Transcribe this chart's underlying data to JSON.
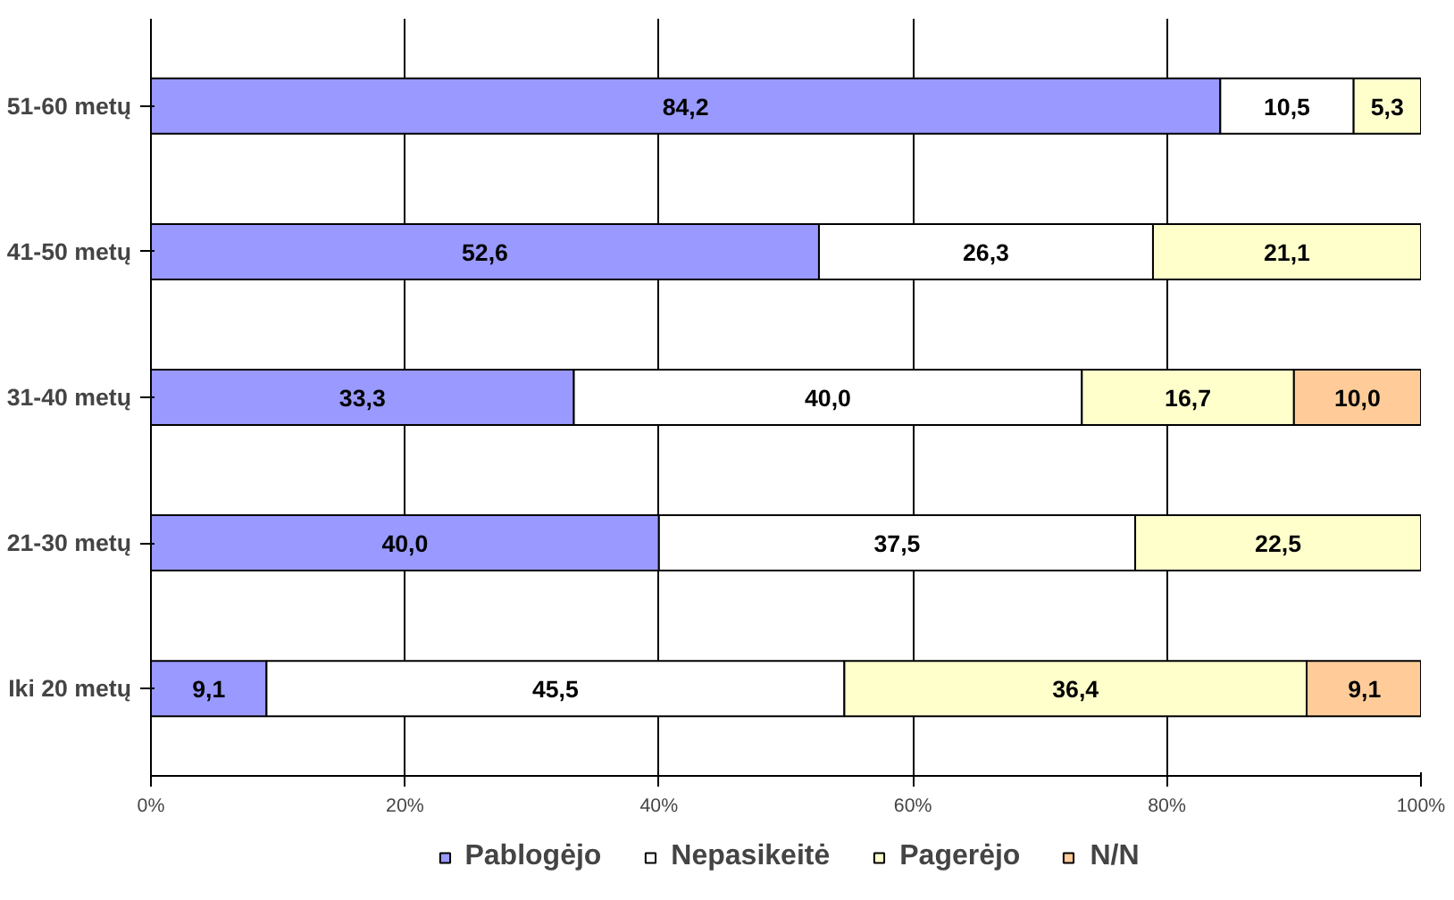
{
  "chart_data": {
    "type": "bar",
    "orientation": "horizontal",
    "stacked": true,
    "categories": [
      "51-60 metų",
      "41-50 metų",
      "31-40 metų",
      "21-30 metų",
      "Iki 20 metų"
    ],
    "series": [
      {
        "name": "Pablogėjo",
        "color": "#9999ff",
        "values": [
          84.2,
          52.6,
          33.3,
          40.0,
          9.1
        ],
        "value_labels": [
          "84,2",
          "52,6",
          "33,3",
          "40,0",
          "9,1"
        ]
      },
      {
        "name": "Nepasikeitė",
        "color": "#ffffff",
        "values": [
          10.5,
          26.3,
          40.0,
          37.5,
          45.5
        ],
        "value_labels": [
          "10,5",
          "26,3",
          "40,0",
          "37,5",
          "45,5"
        ]
      },
      {
        "name": "Pagerėjo",
        "color": "#ffffcc",
        "values": [
          5.3,
          21.1,
          16.7,
          22.5,
          36.4
        ],
        "value_labels": [
          "5,3",
          "21,1",
          "16,7",
          "22,5",
          "36,4"
        ]
      },
      {
        "name": "N/N",
        "color": "#ffcc99",
        "values": [
          null,
          null,
          10.0,
          null,
          9.1
        ],
        "value_labels": [
          null,
          null,
          "10,0",
          null,
          "9,1"
        ]
      }
    ],
    "xlim": [
      0,
      100
    ],
    "xticks": [
      {
        "value": 0,
        "label": "0%"
      },
      {
        "value": 20,
        "label": "20%"
      },
      {
        "value": 40,
        "label": "40%"
      },
      {
        "value": 60,
        "label": "60%"
      },
      {
        "value": 80,
        "label": "80%"
      },
      {
        "value": 100,
        "label": "100%"
      }
    ],
    "grid": "x",
    "legend": "bottom"
  }
}
